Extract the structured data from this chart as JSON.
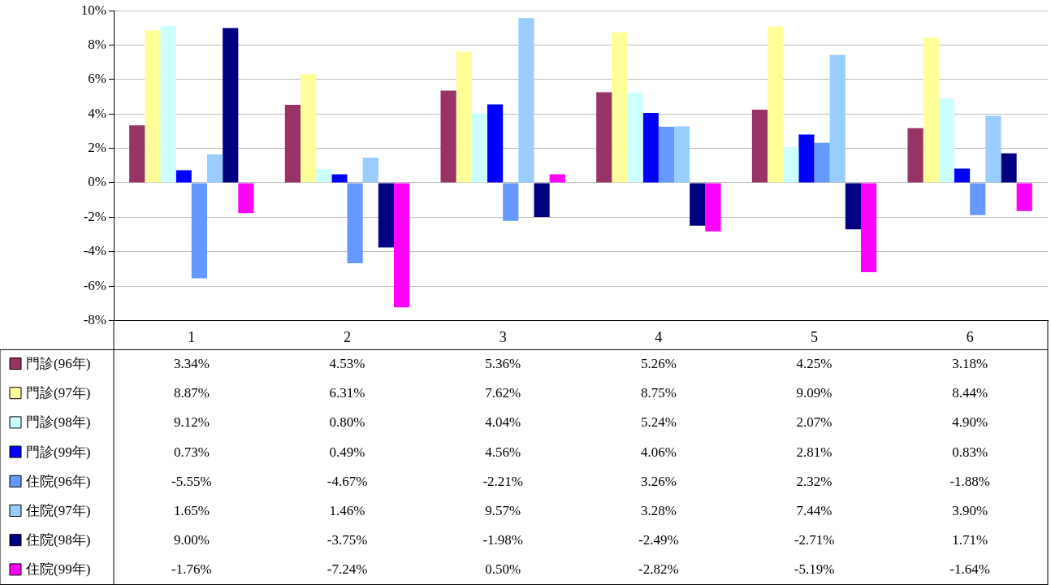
{
  "chart_data": {
    "type": "bar",
    "categories": [
      "1",
      "2",
      "3",
      "4",
      "5",
      "6"
    ],
    "ylim": [
      -8,
      10
    ],
    "yticks": [
      {
        "value": -8,
        "label": "-8%"
      },
      {
        "value": -6,
        "label": "-6%"
      },
      {
        "value": -4,
        "label": "-4%"
      },
      {
        "value": -2,
        "label": "-2%"
      },
      {
        "value": 0,
        "label": "0%"
      },
      {
        "value": 2,
        "label": "2%"
      },
      {
        "value": 4,
        "label": "4%"
      },
      {
        "value": 6,
        "label": "6%"
      },
      {
        "value": 8,
        "label": "8%"
      },
      {
        "value": 10,
        "label": "10%"
      }
    ],
    "grid": "y",
    "legend": "bottom left",
    "series": [
      {
        "name": "門診(96年)",
        "color": "#993366",
        "values": [
          3.34,
          4.53,
          5.36,
          5.26,
          4.25,
          3.18
        ],
        "value_labels": [
          "3.34%",
          "4.53%",
          "5.36%",
          "5.26%",
          "4.25%",
          "3.18%"
        ]
      },
      {
        "name": "門診(97年)",
        "color": "#ffff99",
        "values": [
          8.87,
          6.31,
          7.62,
          8.75,
          9.09,
          8.44
        ],
        "value_labels": [
          "8.87%",
          "6.31%",
          "7.62%",
          "8.75%",
          "9.09%",
          "8.44%"
        ]
      },
      {
        "name": "門診(98年)",
        "color": "#ccffff",
        "values": [
          9.12,
          0.8,
          4.04,
          5.24,
          2.07,
          4.9
        ],
        "value_labels": [
          "9.12%",
          "0.80%",
          "4.04%",
          "5.24%",
          "2.07%",
          "4.90%"
        ]
      },
      {
        "name": "門診(99年)",
        "color": "#0000ff",
        "values": [
          0.73,
          0.49,
          4.56,
          4.06,
          2.81,
          0.83
        ],
        "value_labels": [
          "0.73%",
          "0.49%",
          "4.56%",
          "4.06%",
          "2.81%",
          "0.83%"
        ]
      },
      {
        "name": "住院(96年)",
        "color": "#6699ff",
        "values": [
          -5.55,
          -4.67,
          -2.21,
          3.26,
          2.32,
          -1.88
        ],
        "value_labels": [
          "-5.55%",
          "-4.67%",
          "-2.21%",
          "3.26%",
          "2.32%",
          "-1.88%"
        ]
      },
      {
        "name": "住院(97年)",
        "color": "#99ccff",
        "values": [
          1.65,
          1.46,
          9.57,
          3.28,
          7.44,
          3.9
        ],
        "value_labels": [
          "1.65%",
          "1.46%",
          "9.57%",
          "3.28%",
          "7.44%",
          "3.90%"
        ]
      },
      {
        "name": "住院(98年)",
        "color": "#000080",
        "values": [
          9.0,
          -3.75,
          -1.98,
          -2.49,
          -2.71,
          1.71
        ],
        "value_labels": [
          "9.00%",
          "-3.75%",
          "-1.98%",
          "-2.49%",
          "-2.71%",
          "1.71%"
        ]
      },
      {
        "name": "住院(99年)",
        "color": "#ff00ff",
        "values": [
          -1.76,
          -7.24,
          0.5,
          -2.82,
          -5.19,
          -1.64
        ],
        "value_labels": [
          "-1.76%",
          "-7.24%",
          "0.50%",
          "-2.82%",
          "-5.19%",
          "-1.64%"
        ]
      }
    ]
  }
}
